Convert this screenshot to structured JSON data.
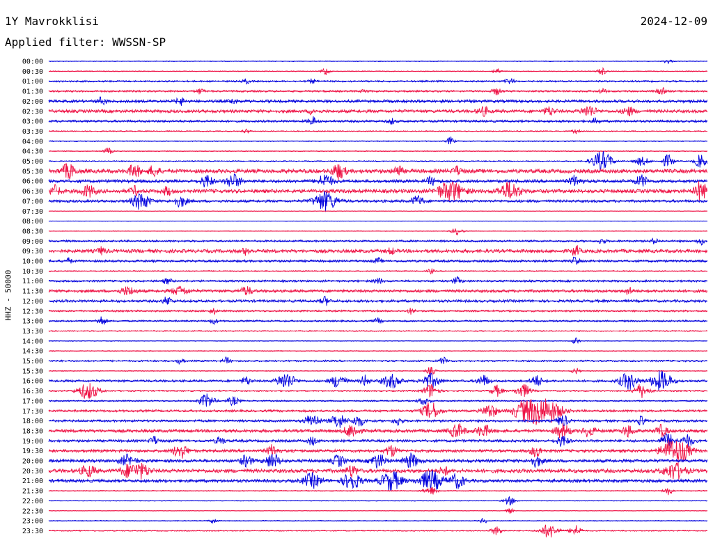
{
  "header": {
    "station": "1Y Mavrokklisi",
    "date": "2024-12-09",
    "filter_text": "Applied filter: WWSSN-SP"
  },
  "axis": {
    "ylabel": "HHZ - 50000"
  },
  "chart_data": {
    "type": "line",
    "ylabel": "HHZ - 50000",
    "row_labels": [
      "00:00",
      "00:30",
      "01:00",
      "01:30",
      "02:00",
      "02:30",
      "03:00",
      "03:30",
      "04:00",
      "04:30",
      "05:00",
      "05:30",
      "06:00",
      "06:30",
      "07:00",
      "07:30",
      "08:00",
      "08:30",
      "09:00",
      "09:30",
      "10:00",
      "10:30",
      "11:00",
      "11:30",
      "12:00",
      "12:30",
      "13:00",
      "13:30",
      "14:00",
      "14:30",
      "15:00",
      "15:30",
      "16:00",
      "16:30",
      "17:00",
      "17:30",
      "18:00",
      "18:30",
      "19:00",
      "19:30",
      "20:00",
      "20:30",
      "21:00",
      "21:30",
      "22:00",
      "22:30",
      "23:00",
      "23:30"
    ],
    "colors": [
      "#0000dd",
      "#ee1144"
    ],
    "noise_levels": [
      0.5,
      0.6,
      1.2,
      1.3,
      2.0,
      2.2,
      1.6,
      0.8,
      0.7,
      0.6,
      0.8,
      2.8,
      2.2,
      2.6,
      1.8,
      0.4,
      0.3,
      0.4,
      1.4,
      2.4,
      1.6,
      0.8,
      1.4,
      2.0,
      1.8,
      1.3,
      1.2,
      0.8,
      0.5,
      0.6,
      1.2,
      0.6,
      1.6,
      1.0,
      1.0,
      1.6,
      1.6,
      2.2,
      1.8,
      2.0,
      2.2,
      2.6,
      2.2,
      0.6,
      0.5,
      0.4,
      0.6,
      0.8
    ],
    "bursts": [
      [
        [
          0.94,
          3,
          6
        ]
      ],
      [
        [
          0.42,
          6,
          5
        ],
        [
          0.68,
          4,
          6
        ],
        [
          0.84,
          5,
          6
        ]
      ],
      [
        [
          0.3,
          3,
          5
        ],
        [
          0.4,
          3,
          5
        ],
        [
          0.7,
          4,
          6
        ]
      ],
      [
        [
          0.23,
          4,
          5
        ],
        [
          0.48,
          3,
          5
        ],
        [
          0.68,
          5,
          6
        ],
        [
          0.84,
          4,
          5
        ],
        [
          0.93,
          5,
          6
        ]
      ],
      [
        [
          0.08,
          5,
          6
        ],
        [
          0.2,
          5,
          6
        ],
        [
          0.28,
          4,
          5
        ]
      ],
      [
        [
          0.4,
          4,
          5
        ],
        [
          0.66,
          6,
          8
        ],
        [
          0.76,
          6,
          8
        ],
        [
          0.82,
          8,
          10
        ],
        [
          0.88,
          6,
          8
        ]
      ],
      [
        [
          0.4,
          6,
          6
        ],
        [
          0.52,
          4,
          5
        ],
        [
          0.83,
          4,
          5
        ]
      ],
      [
        [
          0.3,
          3,
          5
        ],
        [
          0.8,
          3,
          5
        ]
      ],
      [
        [
          0.61,
          6,
          5
        ]
      ],
      [
        [
          0.09,
          5,
          6
        ]
      ],
      [
        [
          0.84,
          14,
          14
        ],
        [
          0.9,
          6,
          10
        ],
        [
          0.94,
          9,
          8
        ],
        [
          0.99,
          10,
          8
        ]
      ],
      [
        [
          0.03,
          10,
          10
        ],
        [
          0.13,
          9,
          8
        ],
        [
          0.16,
          8,
          7
        ],
        [
          0.44,
          11,
          9
        ],
        [
          0.53,
          8,
          6
        ],
        [
          0.62,
          6,
          6
        ]
      ],
      [
        [
          0.24,
          9,
          8
        ],
        [
          0.28,
          10,
          10
        ],
        [
          0.42,
          10,
          10
        ],
        [
          0.58,
          6,
          6
        ],
        [
          0.8,
          8,
          8
        ],
        [
          0.9,
          8,
          8
        ]
      ],
      [
        [
          0.01,
          8,
          7
        ],
        [
          0.06,
          8,
          10
        ],
        [
          0.13,
          6,
          6
        ],
        [
          0.18,
          6,
          6
        ],
        [
          0.61,
          14,
          18
        ],
        [
          0.7,
          12,
          15
        ],
        [
          0.99,
          14,
          8
        ]
      ],
      [
        [
          0.14,
          12,
          12
        ],
        [
          0.2,
          8,
          9
        ],
        [
          0.42,
          14,
          16
        ],
        [
          0.56,
          8,
          8
        ]
      ],
      [],
      [],
      [
        [
          0.62,
          5,
          8
        ]
      ],
      [
        [
          0.84,
          4,
          5
        ],
        [
          0.92,
          4,
          5
        ],
        [
          0.99,
          5,
          5
        ]
      ],
      [
        [
          0.08,
          5,
          6
        ],
        [
          0.3,
          5,
          6
        ],
        [
          0.52,
          4,
          6
        ],
        [
          0.8,
          8,
          5
        ]
      ],
      [
        [
          0.03,
          4,
          5
        ],
        [
          0.5,
          4,
          5
        ],
        [
          0.8,
          6,
          5
        ]
      ],
      [
        [
          0.58,
          4,
          4
        ]
      ],
      [
        [
          0.18,
          4,
          6
        ],
        [
          0.5,
          4,
          6
        ],
        [
          0.62,
          5,
          6
        ]
      ],
      [
        [
          0.12,
          6,
          10
        ],
        [
          0.2,
          6,
          12
        ],
        [
          0.3,
          6,
          8
        ],
        [
          0.88,
          5,
          6
        ]
      ],
      [
        [
          0.18,
          6,
          6
        ],
        [
          0.42,
          6,
          6
        ]
      ],
      [
        [
          0.25,
          4,
          5
        ],
        [
          0.55,
          4,
          5
        ]
      ],
      [
        [
          0.08,
          7,
          6
        ],
        [
          0.25,
          4,
          5
        ],
        [
          0.5,
          4,
          5
        ]
      ],
      [],
      [
        [
          0.8,
          5,
          5
        ]
      ],
      [],
      [
        [
          0.2,
          4,
          5
        ],
        [
          0.27,
          5,
          5
        ],
        [
          0.6,
          5,
          6
        ]
      ],
      [
        [
          0.58,
          6,
          6
        ],
        [
          0.8,
          5,
          5
        ]
      ],
      [
        [
          0.3,
          6,
          6
        ],
        [
          0.36,
          12,
          12
        ],
        [
          0.44,
          10,
          10
        ],
        [
          0.48,
          8,
          6
        ],
        [
          0.52,
          10,
          12
        ],
        [
          0.58,
          10,
          12
        ],
        [
          0.66,
          8,
          8
        ],
        [
          0.74,
          8,
          8
        ],
        [
          0.88,
          12,
          12
        ],
        [
          0.93,
          14,
          14
        ]
      ],
      [
        [
          0.06,
          12,
          14
        ],
        [
          0.58,
          10,
          10
        ],
        [
          0.68,
          8,
          8
        ],
        [
          0.72,
          10,
          10
        ],
        [
          0.9,
          10,
          10
        ]
      ],
      [
        [
          0.24,
          10,
          10
        ],
        [
          0.28,
          6,
          8
        ],
        [
          0.57,
          6,
          8
        ]
      ],
      [
        [
          0.58,
          12,
          12
        ],
        [
          0.67,
          10,
          10
        ],
        [
          0.72,
          14,
          14
        ],
        [
          0.74,
          12,
          12
        ],
        [
          0.76,
          16,
          18
        ]
      ],
      [
        [
          0.4,
          10,
          10
        ],
        [
          0.44,
          10,
          10
        ],
        [
          0.47,
          8,
          8
        ],
        [
          0.53,
          6,
          6
        ],
        [
          0.78,
          8,
          8
        ],
        [
          0.9,
          6,
          6
        ]
      ],
      [
        [
          0.46,
          10,
          10
        ],
        [
          0.62,
          10,
          10
        ],
        [
          0.66,
          8,
          10
        ],
        [
          0.78,
          10,
          10
        ],
        [
          0.82,
          8,
          8
        ],
        [
          0.88,
          8,
          8
        ],
        [
          0.93,
          8,
          8
        ]
      ],
      [
        [
          0.16,
          6,
          6
        ],
        [
          0.26,
          6,
          6
        ],
        [
          0.4,
          6,
          6
        ],
        [
          0.78,
          8,
          8
        ],
        [
          0.94,
          10,
          10
        ],
        [
          0.97,
          8,
          8
        ]
      ],
      [
        [
          0.2,
          10,
          10
        ],
        [
          0.34,
          8,
          8
        ],
        [
          0.52,
          8,
          8
        ],
        [
          0.74,
          8,
          8
        ],
        [
          0.94,
          12,
          12
        ],
        [
          0.96,
          14,
          14
        ]
      ],
      [
        [
          0.12,
          8,
          10
        ],
        [
          0.3,
          8,
          8
        ],
        [
          0.34,
          10,
          10
        ],
        [
          0.44,
          8,
          8
        ],
        [
          0.5,
          10,
          10
        ],
        [
          0.55,
          10,
          10
        ],
        [
          0.74,
          8,
          8
        ]
      ],
      [
        [
          0.06,
          8,
          10
        ],
        [
          0.12,
          8,
          10
        ],
        [
          0.14,
          10,
          12
        ],
        [
          0.46,
          8,
          8
        ],
        [
          0.6,
          6,
          6
        ],
        [
          0.95,
          12,
          14
        ]
      ],
      [
        [
          0.4,
          10,
          12
        ],
        [
          0.46,
          12,
          12
        ],
        [
          0.52,
          14,
          14
        ],
        [
          0.58,
          14,
          16
        ],
        [
          0.62,
          10,
          10
        ]
      ],
      [
        [
          0.58,
          6,
          10
        ],
        [
          0.94,
          6,
          6
        ]
      ],
      [
        [
          0.7,
          6,
          8
        ]
      ],
      [
        [
          0.7,
          4,
          5
        ]
      ],
      [
        [
          0.25,
          4,
          5
        ],
        [
          0.66,
          4,
          5
        ]
      ],
      [
        [
          0.68,
          6,
          8
        ],
        [
          0.76,
          10,
          12
        ],
        [
          0.8,
          8,
          8
        ]
      ]
    ]
  }
}
